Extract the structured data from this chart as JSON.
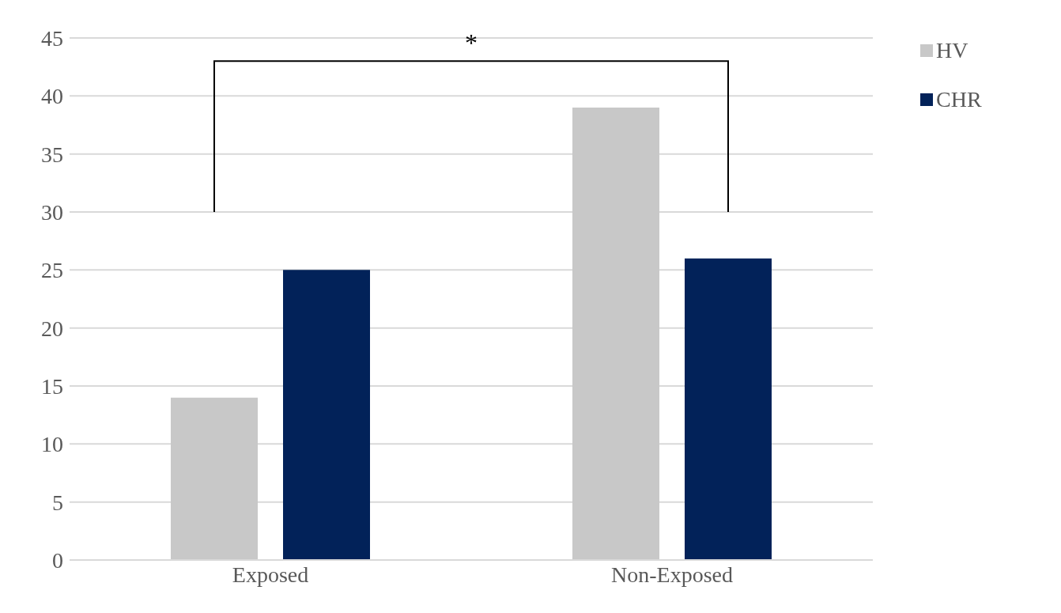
{
  "chart_data": {
    "type": "bar",
    "categories": [
      "Exposed",
      "Non-Exposed"
    ],
    "series": [
      {
        "name": "HV",
        "color": "#c8c8c8",
        "values": [
          14,
          39
        ]
      },
      {
        "name": "CHR",
        "color": "#022259",
        "values": [
          25,
          26
        ]
      }
    ],
    "ylim": [
      0,
      45
    ],
    "yticks": [
      0,
      5,
      10,
      15,
      20,
      25,
      30,
      35,
      40,
      45
    ],
    "grid": "y",
    "legend": "top right",
    "annotations": [
      "*"
    ]
  }
}
